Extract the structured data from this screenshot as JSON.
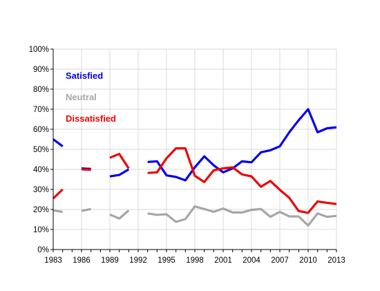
{
  "chart_data": {
    "type": "line",
    "title": "",
    "xlabel": "",
    "ylabel": "",
    "xlim": [
      1983,
      2013
    ],
    "ylim": [
      0,
      100
    ],
    "x_ticks": [
      1983,
      1986,
      1989,
      1992,
      1995,
      1998,
      2001,
      2004,
      2007,
      2010,
      2013
    ],
    "y_ticks": [
      "0%",
      "10%",
      "20%",
      "30%",
      "40%",
      "50%",
      "60%",
      "70%",
      "80%",
      "90%",
      "100%"
    ],
    "grid": true,
    "legend_position": "top-left",
    "series": [
      {
        "name": "Satisfied",
        "color": "#0000ee",
        "segments": [
          [
            [
              1983,
              55
            ],
            [
              1984,
              51.5
            ]
          ],
          [
            [
              1986,
              40.5
            ],
            [
              1987,
              40.2
            ]
          ],
          [
            [
              1989,
              36.5
            ],
            [
              1990,
              37.2
            ],
            [
              1991,
              40
            ]
          ],
          [
            [
              1993,
              43.7
            ],
            [
              1994,
              44
            ],
            [
              1995,
              37
            ],
            [
              1996,
              36.2
            ],
            [
              1997,
              34.5
            ],
            [
              1998,
              41
            ],
            [
              1999,
              46.5
            ],
            [
              2000,
              42
            ],
            [
              2001,
              38.5
            ],
            [
              2002,
              40.5
            ],
            [
              2003,
              44
            ],
            [
              2004,
              43.5
            ],
            [
              2005,
              48.5
            ],
            [
              2006,
              49.5
            ],
            [
              2007,
              51.5
            ],
            [
              2008,
              58.5
            ],
            [
              2009,
              64.5
            ],
            [
              2010,
              70
            ],
            [
              2011,
              58.5
            ],
            [
              2012,
              60.5
            ],
            [
              2013,
              61
            ]
          ]
        ]
      },
      {
        "name": "Neutral",
        "color": "#a6a6a6",
        "segments": [
          [
            [
              1983,
              19.5
            ],
            [
              1984,
              18.8
            ]
          ],
          [
            [
              1986,
              19.3
            ],
            [
              1987,
              20.2
            ]
          ],
          [
            [
              1989,
              17.5
            ],
            [
              1990,
              15.5
            ],
            [
              1991,
              19.5
            ]
          ],
          [
            [
              1993,
              18
            ],
            [
              1994,
              17.3
            ],
            [
              1995,
              17.6
            ],
            [
              1996,
              13.8
            ],
            [
              1997,
              15.2
            ],
            [
              1998,
              21.5
            ],
            [
              1999,
              20.2
            ],
            [
              2000,
              18.8
            ],
            [
              2001,
              20.5
            ],
            [
              2002,
              18.5
            ],
            [
              2003,
              18.5
            ],
            [
              2004,
              19.8
            ],
            [
              2005,
              20.2
            ],
            [
              2006,
              16.3
            ],
            [
              2007,
              18.8
            ],
            [
              2008,
              16.5
            ],
            [
              2009,
              16.5
            ],
            [
              2010,
              12
            ],
            [
              2011,
              18
            ],
            [
              2012,
              16.3
            ],
            [
              2013,
              16.8
            ]
          ]
        ]
      },
      {
        "name": "Dissatisfied",
        "color": "#ee0000",
        "segments": [
          [
            [
              1983,
              25.5
            ],
            [
              1984,
              30
            ]
          ],
          [
            [
              1986,
              40
            ],
            [
              1987,
              39.8
            ]
          ],
          [
            [
              1989,
              45.8
            ],
            [
              1990,
              47.7
            ],
            [
              1991,
              40.5
            ]
          ],
          [
            [
              1993,
              38.2
            ],
            [
              1994,
              38.5
            ],
            [
              1995,
              45.5
            ],
            [
              1996,
              50.5
            ],
            [
              1997,
              50.5
            ],
            [
              1998,
              36.8
            ],
            [
              1999,
              33.7
            ],
            [
              2000,
              39.5
            ],
            [
              2001,
              40.5
            ],
            [
              2002,
              41
            ],
            [
              2003,
              37.5
            ],
            [
              2004,
              36.5
            ],
            [
              2005,
              31.3
            ],
            [
              2006,
              34.2
            ],
            [
              2007,
              29.8
            ],
            [
              2008,
              25.8
            ],
            [
              2009,
              19.2
            ],
            [
              2010,
              18.3
            ],
            [
              2011,
              24
            ],
            [
              2012,
              23.3
            ],
            [
              2013,
              22.7
            ]
          ]
        ]
      }
    ]
  }
}
